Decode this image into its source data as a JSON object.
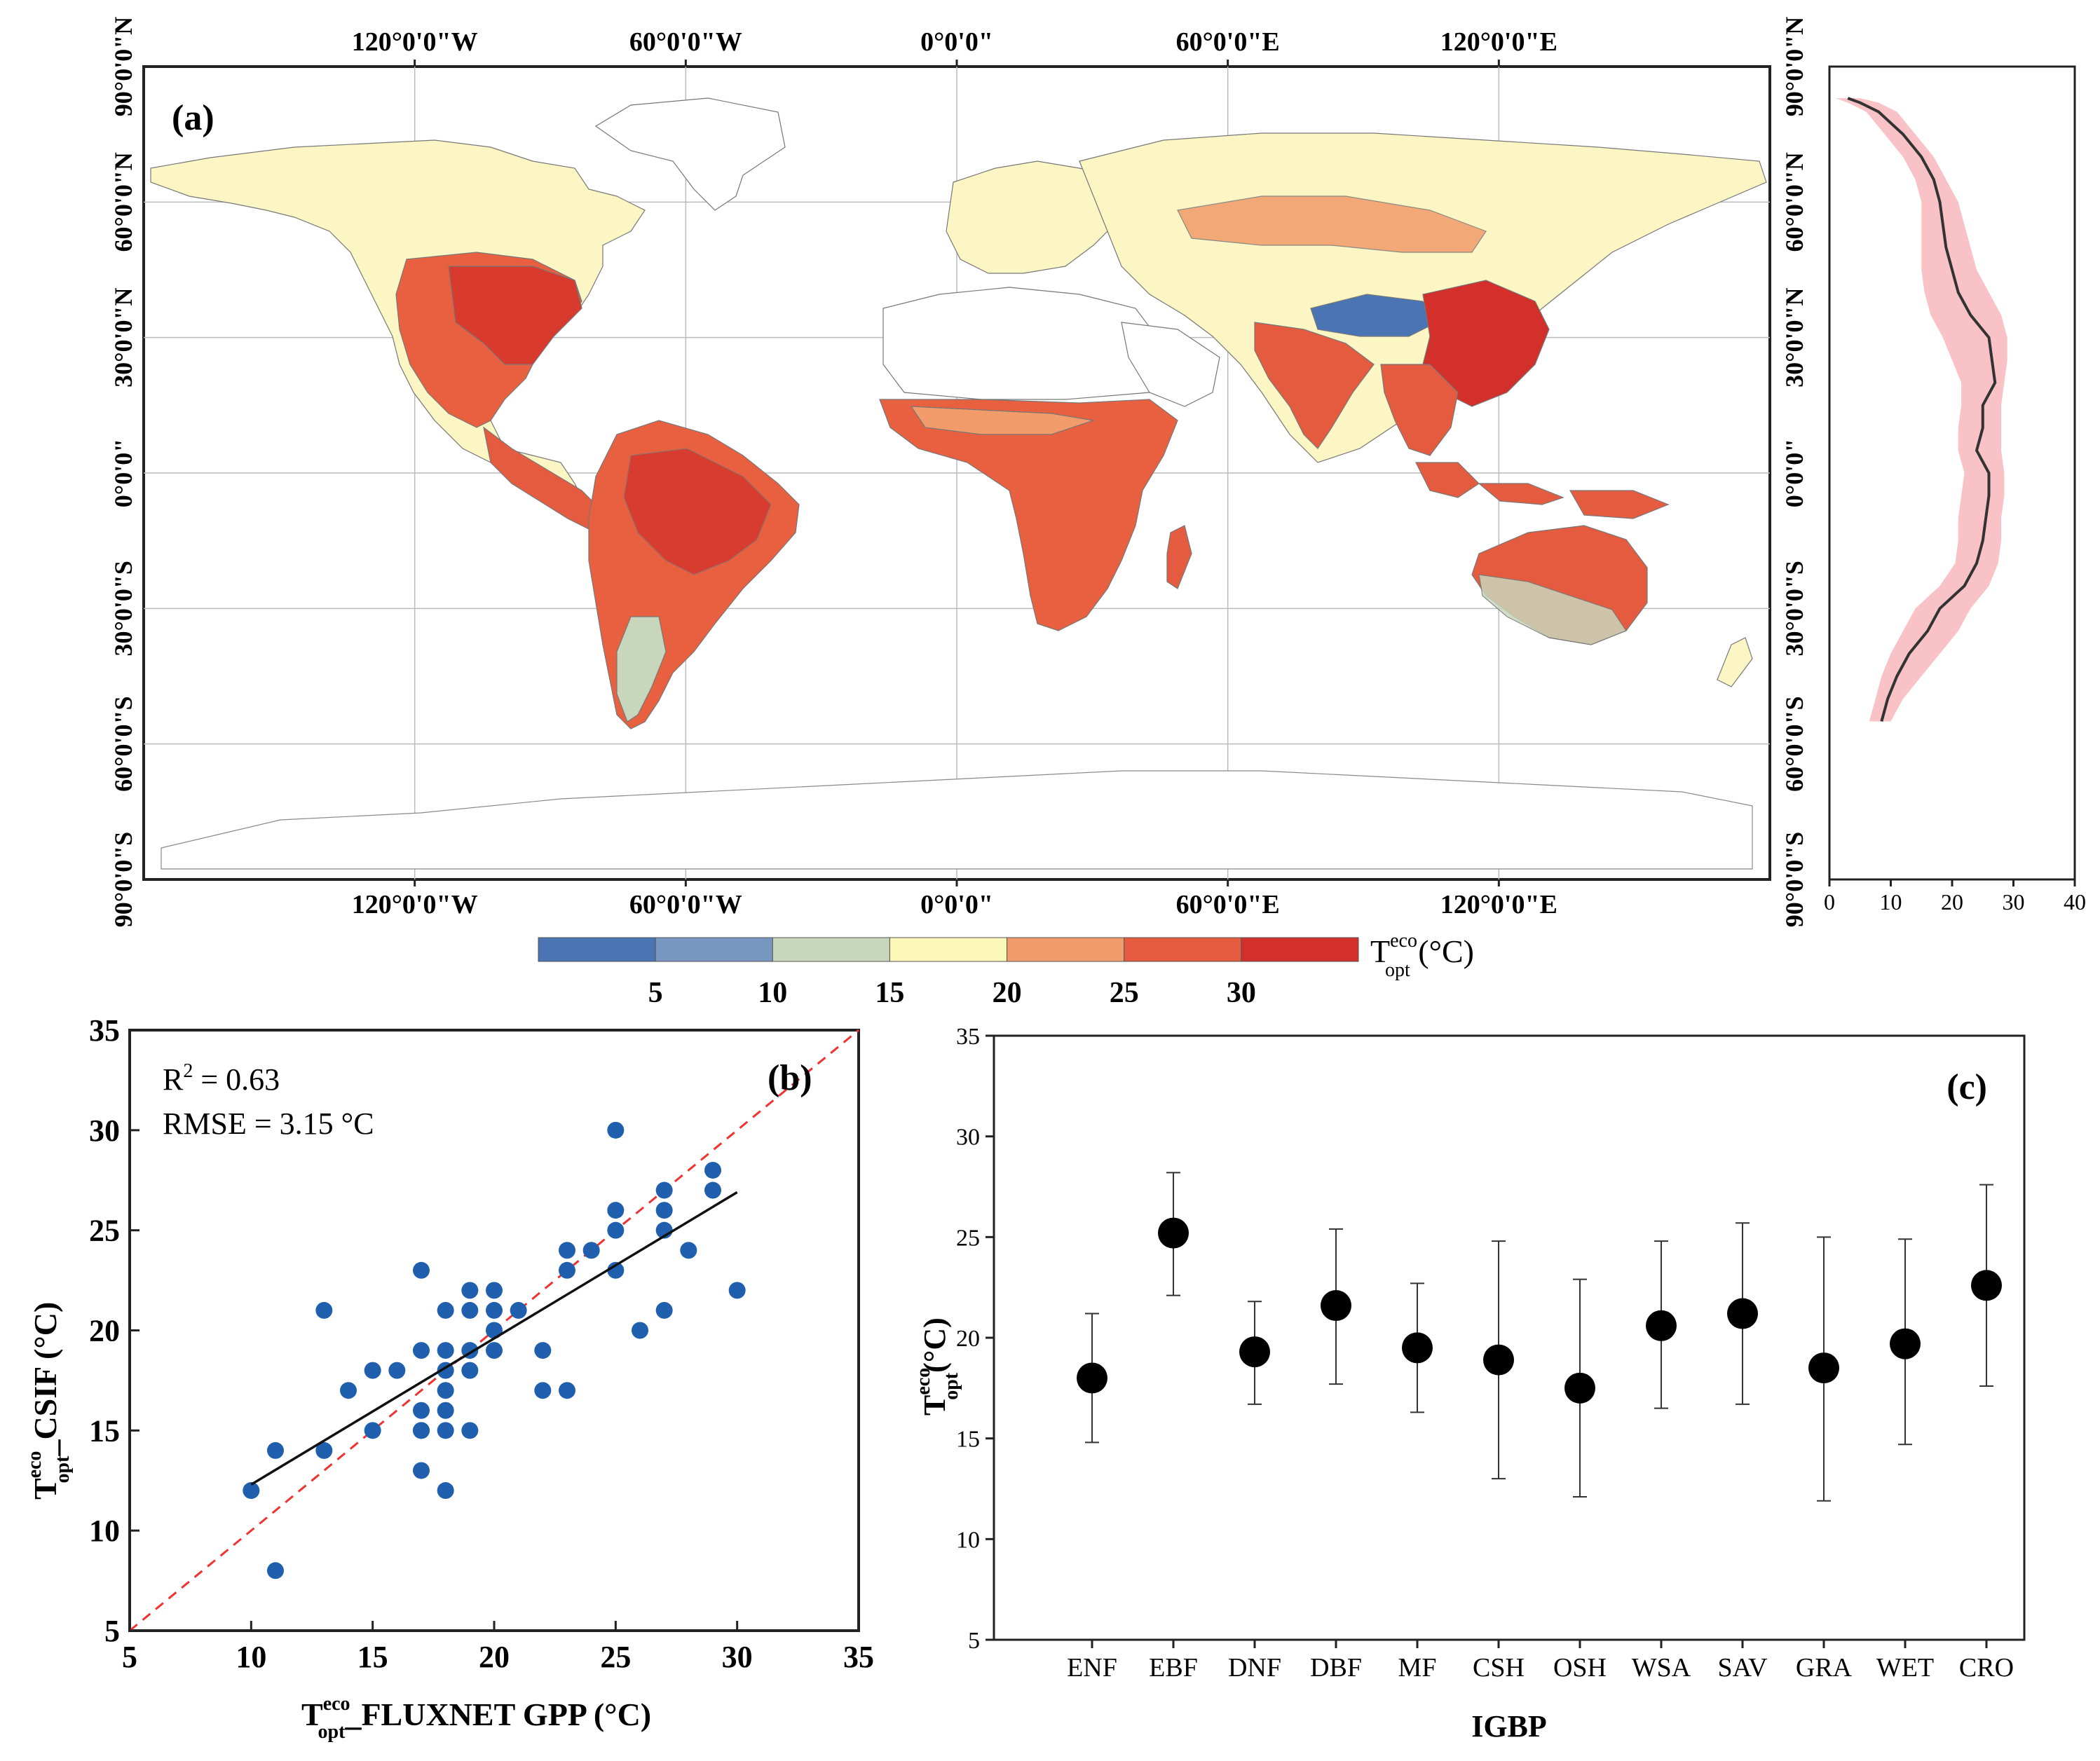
{
  "figure": {
    "panel_a_label": "(a)",
    "panel_b_label": "(b)",
    "panel_c_label": "(c)"
  },
  "map": {
    "lon_ticks_top": [
      "120°0'0\"W",
      "60°0'0\"W",
      "0°0'0\"",
      "60°0'0\"E",
      "120°0'0\"E"
    ],
    "lon_ticks_bottom": [
      "120°0'0\"W",
      "60°0'0\"W",
      "0°0'0\"",
      "60°0'0\"E",
      "120°0'0\"E"
    ],
    "lat_ticks": [
      "90°0'0\"N",
      "60°0'0\"N",
      "30°0'0\"N",
      "0°0'0\"",
      "30°0'0\"S",
      "60°0'0\"S",
      "90°0'0\"S"
    ],
    "colorbar": {
      "colors": [
        "#4a74b4",
        "#7797c0",
        "#c8d6bc",
        "#fbf8ba",
        "#f29b6b",
        "#e55b40",
        "#d3302b"
      ],
      "tick_labels": [
        "5",
        "10",
        "15",
        "20",
        "25",
        "30"
      ],
      "label_main": "T",
      "label_sup": "eco",
      "label_sub": "opt",
      "label_unit": " (°C)"
    }
  },
  "chart_data": [
    {
      "panel": "a-profile",
      "type": "line",
      "title": "",
      "xlabel": "",
      "ylabel": "",
      "xlim": [
        0,
        40
      ],
      "ylim": [
        -90,
        90
      ],
      "x_ticks": [
        "0",
        "10",
        "20",
        "30",
        "40"
      ],
      "series": [
        {
          "name": "mean",
          "lat": [
            83,
            82,
            80,
            75,
            70,
            65,
            60,
            55,
            50,
            45,
            40,
            35,
            30,
            25,
            20,
            15,
            10,
            5,
            0,
            -5,
            -10,
            -15,
            -20,
            -25,
            -30,
            -35,
            -40,
            -45,
            -50,
            -55
          ],
          "mean": [
            3,
            5,
            8,
            12,
            15,
            17,
            18,
            18.5,
            19,
            20,
            21,
            23,
            26,
            26.5,
            27,
            25,
            25,
            24,
            26,
            26,
            25.5,
            25,
            24,
            22,
            18,
            16,
            13,
            11,
            9.5,
            8.5
          ],
          "lower": [
            1,
            3,
            6,
            9,
            12,
            14,
            15,
            15,
            15,
            15,
            15.5,
            16.5,
            18.5,
            20,
            21.5,
            21.5,
            21,
            21,
            22,
            21.5,
            21,
            21,
            20.5,
            18,
            14,
            12,
            10,
            8.5,
            7.5,
            6.5
          ],
          "upper": [
            5,
            8,
            11,
            14,
            17,
            19,
            21,
            22,
            23,
            24,
            26,
            28,
            29,
            29,
            28.5,
            28,
            28,
            28,
            28.5,
            28.5,
            28,
            28,
            27.5,
            26,
            23,
            21,
            18,
            15,
            12,
            10
          ]
        }
      ]
    },
    {
      "panel": "b",
      "type": "scatter",
      "title": "",
      "xlabel_main": "T",
      "xlabel_sup": "eco",
      "xlabel_sub": "opt",
      "xlabel_rest": "_FLUXNET GPP (°C)",
      "ylabel_main": "T",
      "ylabel_sup": "eco",
      "ylabel_sub": "opt",
      "ylabel_rest": "_CSIF (°C)",
      "xlim": [
        5,
        35
      ],
      "ylim": [
        5,
        35
      ],
      "x_ticks": [
        "5",
        "10",
        "15",
        "20",
        "25",
        "30",
        "35"
      ],
      "y_ticks": [
        "5",
        "10",
        "15",
        "20",
        "25",
        "30",
        "35"
      ],
      "r2_label": "R",
      "r2_sup": "2",
      "r2_value": " = 0.63",
      "rmse_label": "RMSE = 3.15 °C",
      "points": [
        [
          10,
          12
        ],
        [
          11,
          14
        ],
        [
          11,
          8
        ],
        [
          13,
          21
        ],
        [
          13,
          14
        ],
        [
          14,
          17
        ],
        [
          15,
          18
        ],
        [
          15,
          15
        ],
        [
          16,
          18
        ],
        [
          17,
          23
        ],
        [
          17,
          19
        ],
        [
          17,
          16
        ],
        [
          17,
          15
        ],
        [
          17,
          15
        ],
        [
          17,
          13
        ],
        [
          18,
          21
        ],
        [
          18,
          19
        ],
        [
          18,
          18
        ],
        [
          18,
          17
        ],
        [
          18,
          16
        ],
        [
          18,
          15
        ],
        [
          18,
          12
        ],
        [
          19,
          22
        ],
        [
          19,
          21
        ],
        [
          19,
          19
        ],
        [
          19,
          18
        ],
        [
          19,
          15
        ],
        [
          20,
          22
        ],
        [
          20,
          21
        ],
        [
          20,
          20
        ],
        [
          20,
          19
        ],
        [
          21,
          21
        ],
        [
          22,
          19
        ],
        [
          22,
          17
        ],
        [
          23,
          24
        ],
        [
          23,
          23
        ],
        [
          23,
          17
        ],
        [
          24,
          24
        ],
        [
          25,
          30
        ],
        [
          25,
          26
        ],
        [
          25,
          25
        ],
        [
          25,
          23
        ],
        [
          26,
          20
        ],
        [
          27,
          27
        ],
        [
          27,
          26
        ],
        [
          27,
          25
        ],
        [
          27,
          21
        ],
        [
          28,
          24
        ],
        [
          29,
          28
        ],
        [
          29,
          27
        ],
        [
          30,
          22
        ]
      ],
      "fit_line": {
        "x": [
          10,
          30
        ],
        "y": [
          12.3,
          26.9
        ]
      },
      "one_to_one": {
        "x": [
          5,
          35
        ],
        "y": [
          5,
          35
        ]
      }
    },
    {
      "panel": "c",
      "type": "scatter",
      "title": "",
      "xlabel": "IGBP",
      "ylabel_main": "T",
      "ylabel_sup": "eco",
      "ylabel_sub": "opt",
      "ylabel_rest": "(°C)",
      "ylim": [
        5,
        35
      ],
      "y_ticks": [
        "5",
        "10",
        "15",
        "20",
        "25",
        "30",
        "35"
      ],
      "categories": [
        "ENF",
        "EBF",
        "DNF",
        "DBF",
        "MF",
        "CSH",
        "OSH",
        "WSA",
        "SAV",
        "GRA",
        "WET",
        "CRO"
      ],
      "values": [
        18.0,
        25.2,
        19.3,
        21.6,
        19.5,
        18.9,
        17.5,
        20.6,
        21.2,
        18.5,
        19.7,
        22.6
      ],
      "err_low": [
        14.8,
        22.1,
        16.7,
        17.7,
        16.3,
        13.0,
        12.1,
        16.5,
        16.7,
        11.9,
        14.7,
        17.6
      ],
      "err_high": [
        21.2,
        28.2,
        21.8,
        25.4,
        22.7,
        24.8,
        22.9,
        24.8,
        25.7,
        25.0,
        24.9,
        27.6
      ]
    }
  ]
}
